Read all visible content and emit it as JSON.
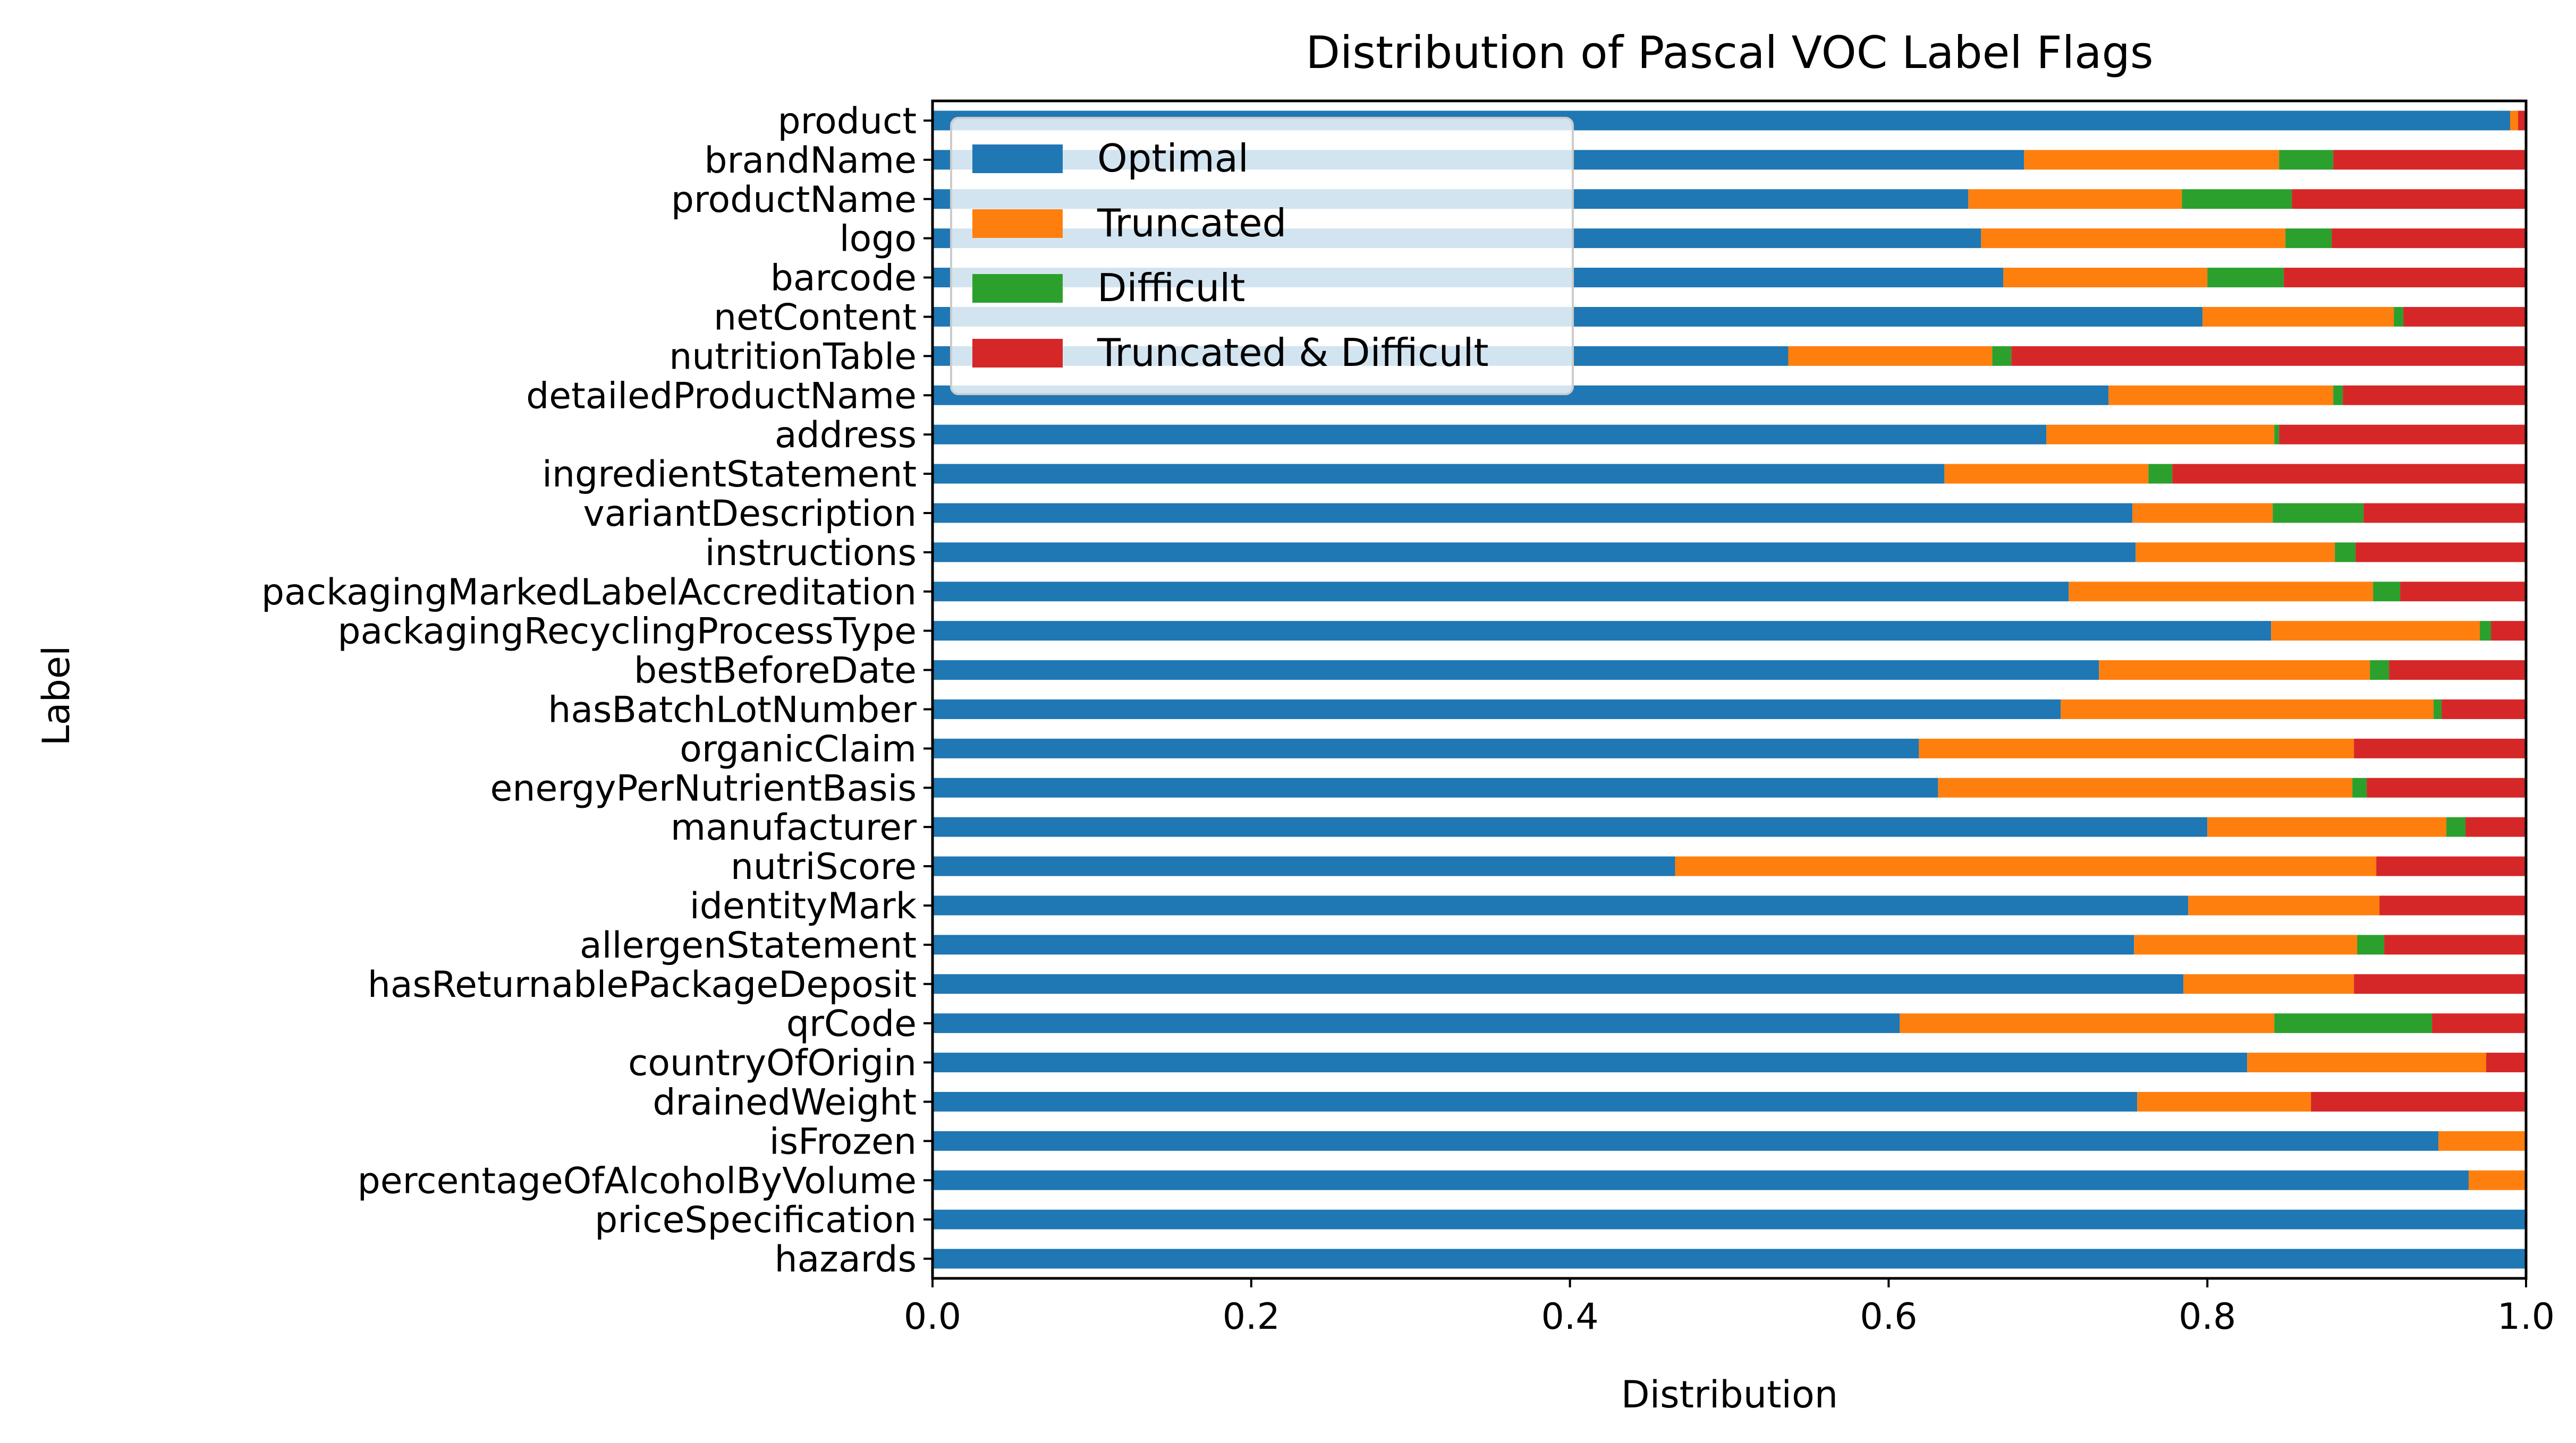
{
  "chart_data": {
    "type": "bar",
    "orientation": "horizontal",
    "stacked": true,
    "title": "Distribution of Pascal VOC Label Flags",
    "xlabel": "Distribution",
    "ylabel": "Label",
    "xlim": [
      0,
      1
    ],
    "xticks": [
      "0.0",
      "0.2",
      "0.4",
      "0.6",
      "0.8",
      "1.0"
    ],
    "legend_position": "top-left",
    "categories": [
      "product",
      "brandName",
      "productName",
      "logo",
      "barcode",
      "netContent",
      "nutritionTable",
      "detailedProductName",
      "address",
      "ingredientStatement",
      "variantDescription",
      "instructions",
      "packagingMarkedLabelAccreditation",
      "packagingRecyclingProcessType",
      "bestBeforeDate",
      "hasBatchLotNumber",
      "organicClaim",
      "energyPerNutrientBasis",
      "manufacturer",
      "nutriScore",
      "identityMark",
      "allergenStatement",
      "hasReturnablePackageDeposit",
      "qrCode",
      "countryOfOrigin",
      "drainedWeight",
      "isFrozen",
      "percentageOfAlcoholByVolume",
      "priceSpecification",
      "hazards"
    ],
    "series": [
      {
        "name": "Optimal",
        "color": "#1f77b4",
        "values": [
          0.99,
          0.685,
          0.65,
          0.658,
          0.672,
          0.797,
          0.537,
          0.738,
          0.699,
          0.635,
          0.753,
          0.755,
          0.713,
          0.84,
          0.732,
          0.708,
          0.619,
          0.631,
          0.8,
          0.466,
          0.788,
          0.754,
          0.785,
          0.607,
          0.825,
          0.756,
          0.945,
          0.964,
          1.0,
          1.0
        ]
      },
      {
        "name": "Truncated",
        "color": "#ff7f0e",
        "values": [
          0.005,
          0.16,
          0.134,
          0.191,
          0.128,
          0.12,
          0.128,
          0.141,
          0.143,
          0.128,
          0.088,
          0.125,
          0.191,
          0.131,
          0.17,
          0.234,
          0.273,
          0.26,
          0.15,
          0.44,
          0.12,
          0.14,
          0.107,
          0.235,
          0.15,
          0.109,
          0.055,
          0.036,
          0.0,
          0.0
        ]
      },
      {
        "name": "Difficult",
        "color": "#2ca02c",
        "values": [
          0.0,
          0.034,
          0.069,
          0.029,
          0.048,
          0.006,
          0.012,
          0.006,
          0.003,
          0.015,
          0.057,
          0.013,
          0.017,
          0.007,
          0.012,
          0.005,
          0.0,
          0.009,
          0.012,
          0.0,
          0.0,
          0.017,
          0.0,
          0.099,
          0.0,
          0.0,
          0.0,
          0.0,
          0.0,
          0.0
        ]
      },
      {
        "name": "Truncated & Difficult",
        "color": "#d62728",
        "values": [
          0.005,
          0.121,
          0.147,
          0.122,
          0.152,
          0.077,
          0.323,
          0.115,
          0.155,
          0.222,
          0.102,
          0.107,
          0.079,
          0.022,
          0.086,
          0.053,
          0.108,
          0.1,
          0.038,
          0.094,
          0.092,
          0.089,
          0.108,
          0.059,
          0.025,
          0.135,
          0.0,
          0.0,
          0.0,
          0.0
        ]
      }
    ]
  }
}
